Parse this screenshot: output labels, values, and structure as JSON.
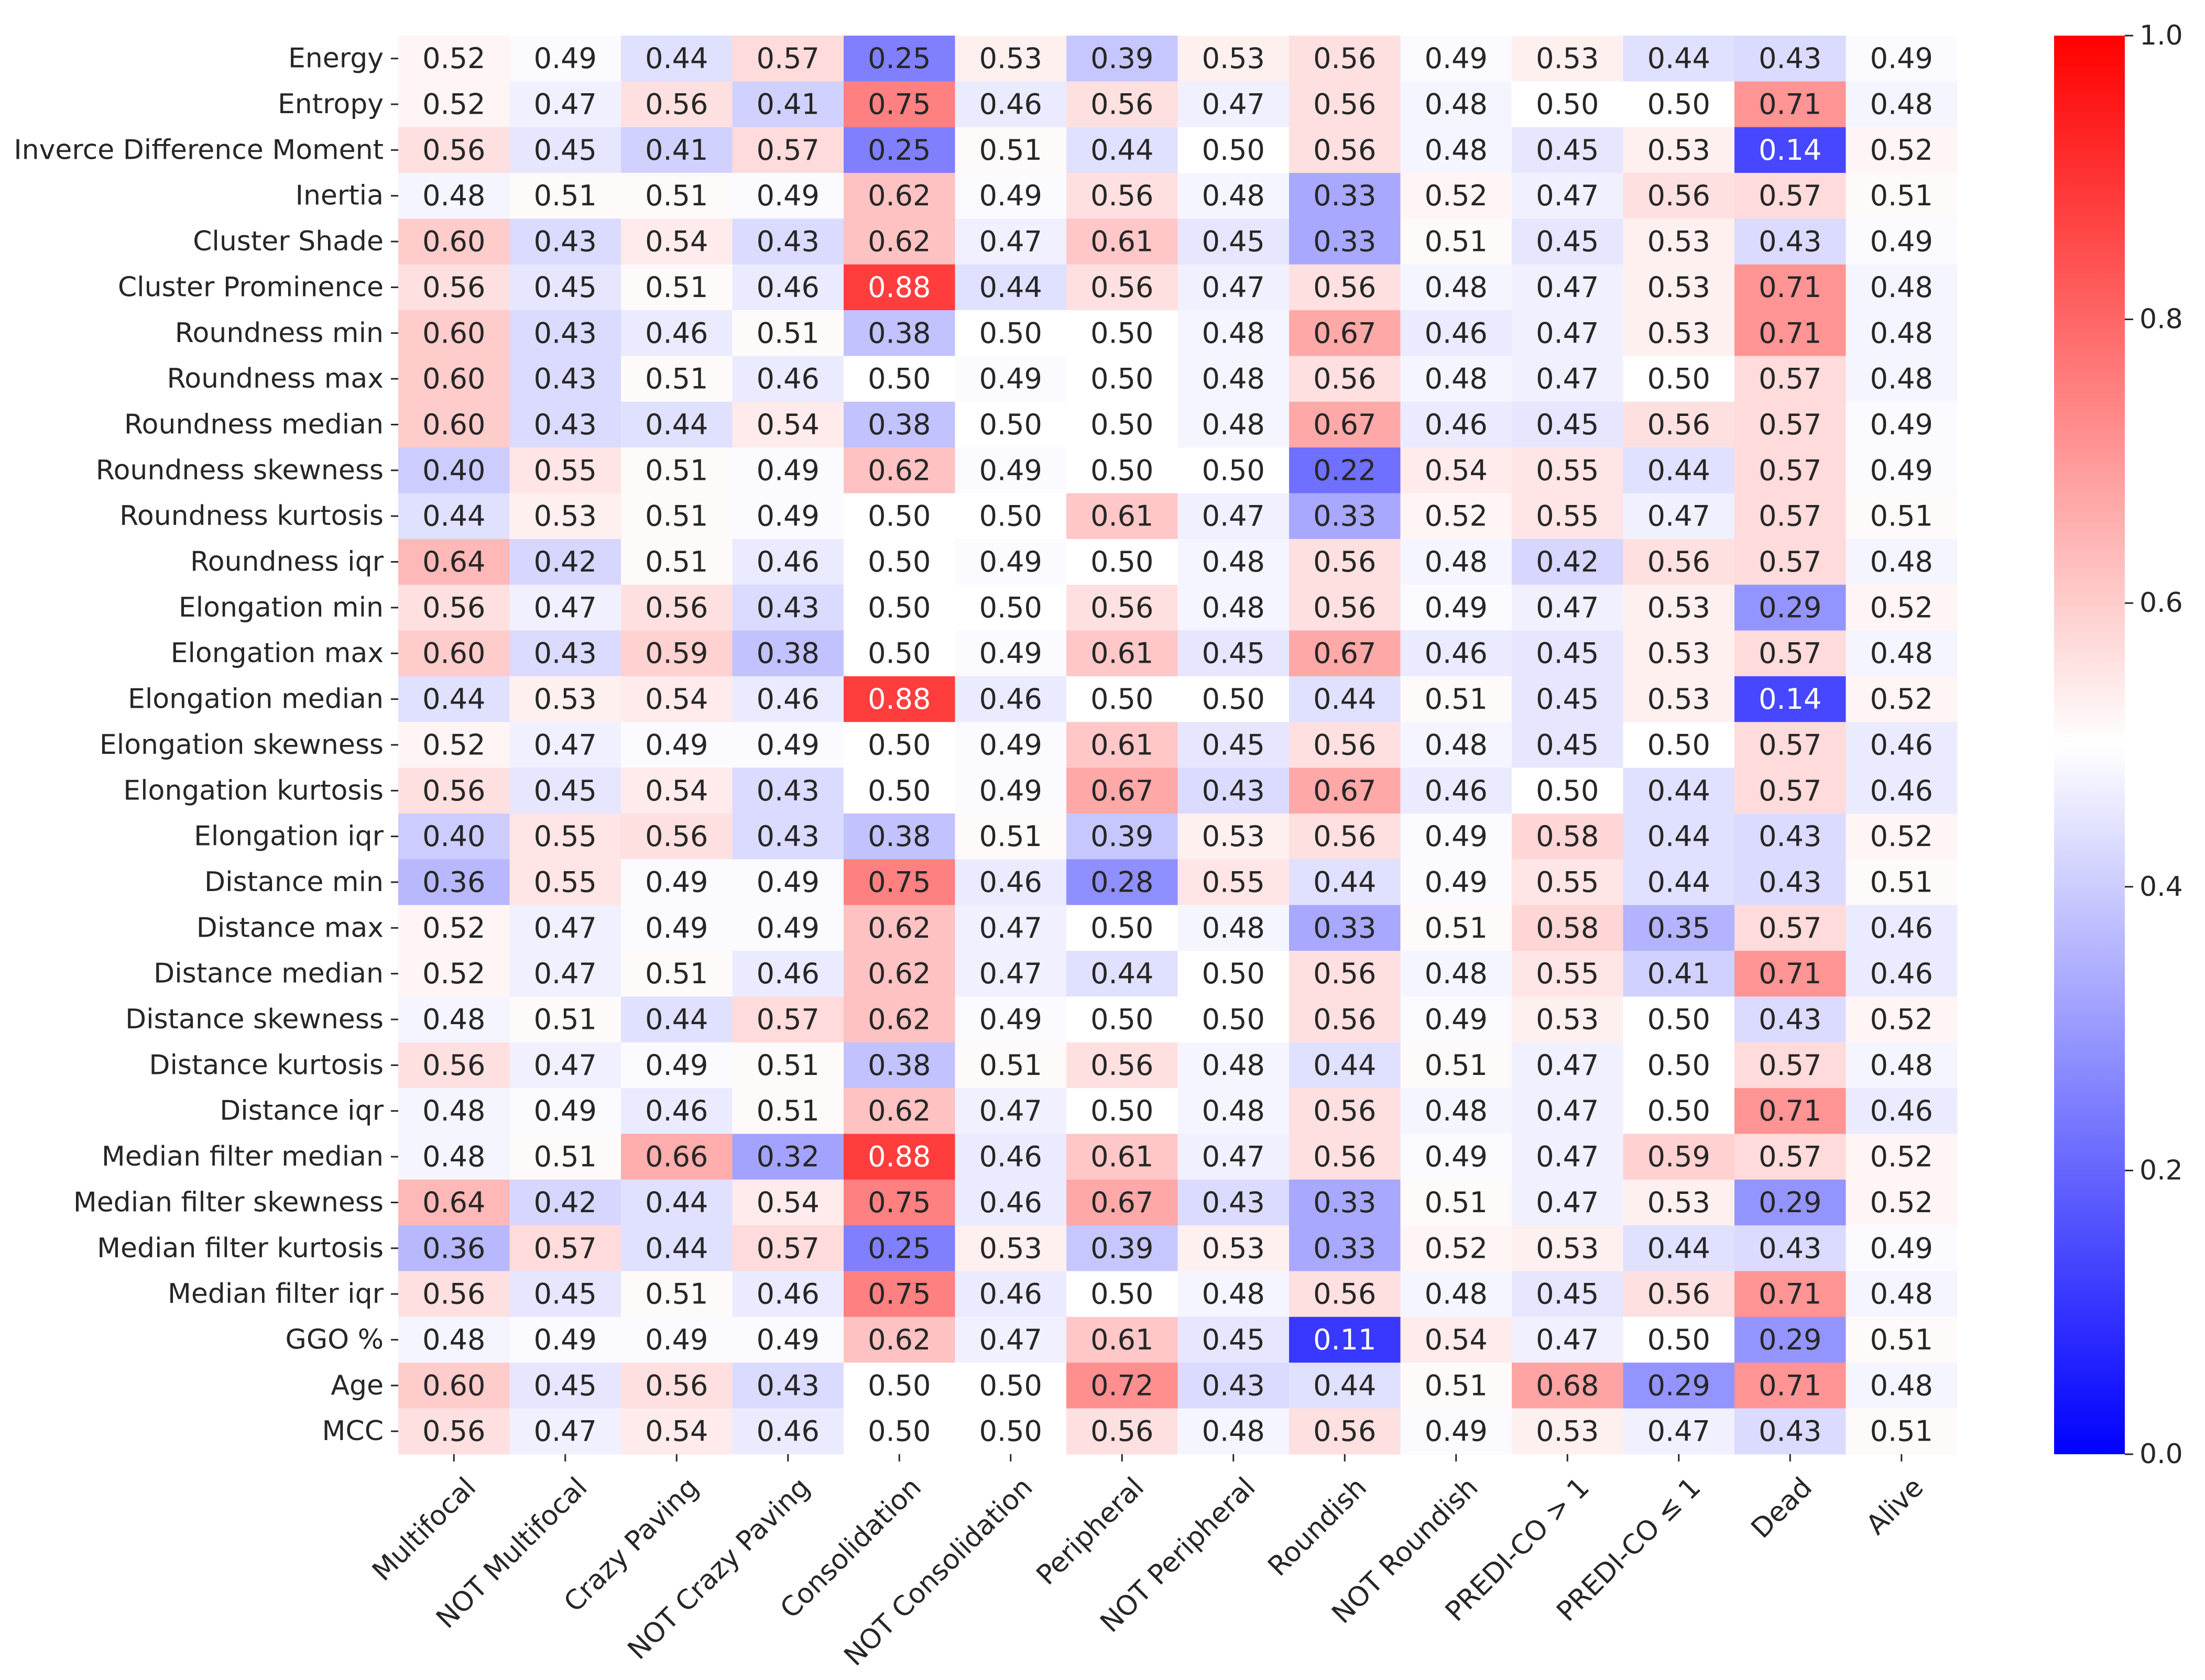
{
  "chart_data": {
    "type": "heatmap",
    "colormap": "bwr",
    "colors": {
      "low": "#0000ff",
      "mid": "#ffffff",
      "high": "#ff0000",
      "text_dark": "#262626",
      "text_light": "#ffffff"
    },
    "vmin": 0.0,
    "vmax": 1.0,
    "colorbar_ticks": [
      "0.0",
      "0.2",
      "0.4",
      "0.6",
      "0.8",
      "1.0"
    ],
    "rows": [
      "Energy",
      "Entropy",
      "Inverce Difference Moment",
      "Inertia",
      "Cluster Shade",
      "Cluster Prominence",
      "Roundness min",
      "Roundness max",
      "Roundness median",
      "Roundness skewness",
      "Roundness kurtosis",
      "Roundness iqr",
      "Elongation min",
      "Elongation max",
      "Elongation median",
      "Elongation skewness",
      "Elongation kurtosis",
      "Elongation iqr",
      "Distance min",
      "Distance max",
      "Distance median",
      "Distance skewness",
      "Distance kurtosis",
      "Distance iqr",
      "Median filter median",
      "Median filter skewness",
      "Median filter kurtosis",
      "Median filter iqr",
      "GGO %",
      "Age",
      "MCC"
    ],
    "columns": [
      "Multifocal",
      "NOT Multifocal",
      "Crazy Paving",
      "NOT Crazy Paving",
      "Consolidation",
      "NOT Consolidation",
      "Peripheral",
      "NOT Peripheral",
      "Roundish",
      "NOT Roundish",
      "PREDI-CO > 1",
      "PREDI-CO ≤ 1",
      "Dead",
      "Alive"
    ],
    "values": [
      [
        "0.52",
        "0.49",
        "0.44",
        "0.57",
        "0.25",
        "0.53",
        "0.39",
        "0.53",
        "0.56",
        "0.49",
        "0.53",
        "0.44",
        "0.43",
        "0.49"
      ],
      [
        "0.52",
        "0.47",
        "0.56",
        "0.41",
        "0.75",
        "0.46",
        "0.56",
        "0.47",
        "0.56",
        "0.48",
        "0.50",
        "0.50",
        "0.71",
        "0.48"
      ],
      [
        "0.56",
        "0.45",
        "0.41",
        "0.57",
        "0.25",
        "0.51",
        "0.44",
        "0.50",
        "0.56",
        "0.48",
        "0.45",
        "0.53",
        "0.14",
        "0.52"
      ],
      [
        "0.48",
        "0.51",
        "0.51",
        "0.49",
        "0.62",
        "0.49",
        "0.56",
        "0.48",
        "0.33",
        "0.52",
        "0.47",
        "0.56",
        "0.57",
        "0.51"
      ],
      [
        "0.60",
        "0.43",
        "0.54",
        "0.43",
        "0.62",
        "0.47",
        "0.61",
        "0.45",
        "0.33",
        "0.51",
        "0.45",
        "0.53",
        "0.43",
        "0.49"
      ],
      [
        "0.56",
        "0.45",
        "0.51",
        "0.46",
        "0.88",
        "0.44",
        "0.56",
        "0.47",
        "0.56",
        "0.48",
        "0.47",
        "0.53",
        "0.71",
        "0.48"
      ],
      [
        "0.60",
        "0.43",
        "0.46",
        "0.51",
        "0.38",
        "0.50",
        "0.50",
        "0.48",
        "0.67",
        "0.46",
        "0.47",
        "0.53",
        "0.71",
        "0.48"
      ],
      [
        "0.60",
        "0.43",
        "0.51",
        "0.46",
        "0.50",
        "0.49",
        "0.50",
        "0.48",
        "0.56",
        "0.48",
        "0.47",
        "0.50",
        "0.57",
        "0.48"
      ],
      [
        "0.60",
        "0.43",
        "0.44",
        "0.54",
        "0.38",
        "0.50",
        "0.50",
        "0.48",
        "0.67",
        "0.46",
        "0.45",
        "0.56",
        "0.57",
        "0.49"
      ],
      [
        "0.40",
        "0.55",
        "0.51",
        "0.49",
        "0.62",
        "0.49",
        "0.50",
        "0.50",
        "0.22",
        "0.54",
        "0.55",
        "0.44",
        "0.57",
        "0.49"
      ],
      [
        "0.44",
        "0.53",
        "0.51",
        "0.49",
        "0.50",
        "0.50",
        "0.61",
        "0.47",
        "0.33",
        "0.52",
        "0.55",
        "0.47",
        "0.57",
        "0.51"
      ],
      [
        "0.64",
        "0.42",
        "0.51",
        "0.46",
        "0.50",
        "0.49",
        "0.50",
        "0.48",
        "0.56",
        "0.48",
        "0.42",
        "0.56",
        "0.57",
        "0.48"
      ],
      [
        "0.56",
        "0.47",
        "0.56",
        "0.43",
        "0.50",
        "0.50",
        "0.56",
        "0.48",
        "0.56",
        "0.49",
        "0.47",
        "0.53",
        "0.29",
        "0.52"
      ],
      [
        "0.60",
        "0.43",
        "0.59",
        "0.38",
        "0.50",
        "0.49",
        "0.61",
        "0.45",
        "0.67",
        "0.46",
        "0.45",
        "0.53",
        "0.57",
        "0.48"
      ],
      [
        "0.44",
        "0.53",
        "0.54",
        "0.46",
        "0.88",
        "0.46",
        "0.50",
        "0.50",
        "0.44",
        "0.51",
        "0.45",
        "0.53",
        "0.14",
        "0.52"
      ],
      [
        "0.52",
        "0.47",
        "0.49",
        "0.49",
        "0.50",
        "0.49",
        "0.61",
        "0.45",
        "0.56",
        "0.48",
        "0.45",
        "0.50",
        "0.57",
        "0.46"
      ],
      [
        "0.56",
        "0.45",
        "0.54",
        "0.43",
        "0.50",
        "0.49",
        "0.67",
        "0.43",
        "0.67",
        "0.46",
        "0.50",
        "0.44",
        "0.57",
        "0.46"
      ],
      [
        "0.40",
        "0.55",
        "0.56",
        "0.43",
        "0.38",
        "0.51",
        "0.39",
        "0.53",
        "0.56",
        "0.49",
        "0.58",
        "0.44",
        "0.43",
        "0.52"
      ],
      [
        "0.36",
        "0.55",
        "0.49",
        "0.49",
        "0.75",
        "0.46",
        "0.28",
        "0.55",
        "0.44",
        "0.49",
        "0.55",
        "0.44",
        "0.43",
        "0.51"
      ],
      [
        "0.52",
        "0.47",
        "0.49",
        "0.49",
        "0.62",
        "0.47",
        "0.50",
        "0.48",
        "0.33",
        "0.51",
        "0.58",
        "0.35",
        "0.57",
        "0.46"
      ],
      [
        "0.52",
        "0.47",
        "0.51",
        "0.46",
        "0.62",
        "0.47",
        "0.44",
        "0.50",
        "0.56",
        "0.48",
        "0.55",
        "0.41",
        "0.71",
        "0.46"
      ],
      [
        "0.48",
        "0.51",
        "0.44",
        "0.57",
        "0.62",
        "0.49",
        "0.50",
        "0.50",
        "0.56",
        "0.49",
        "0.53",
        "0.50",
        "0.43",
        "0.52"
      ],
      [
        "0.56",
        "0.47",
        "0.49",
        "0.51",
        "0.38",
        "0.51",
        "0.56",
        "0.48",
        "0.44",
        "0.51",
        "0.47",
        "0.50",
        "0.57",
        "0.48"
      ],
      [
        "0.48",
        "0.49",
        "0.46",
        "0.51",
        "0.62",
        "0.47",
        "0.50",
        "0.48",
        "0.56",
        "0.48",
        "0.47",
        "0.50",
        "0.71",
        "0.46"
      ],
      [
        "0.48",
        "0.51",
        "0.66",
        "0.32",
        "0.88",
        "0.46",
        "0.61",
        "0.47",
        "0.56",
        "0.49",
        "0.47",
        "0.59",
        "0.57",
        "0.52"
      ],
      [
        "0.64",
        "0.42",
        "0.44",
        "0.54",
        "0.75",
        "0.46",
        "0.67",
        "0.43",
        "0.33",
        "0.51",
        "0.47",
        "0.53",
        "0.29",
        "0.52"
      ],
      [
        "0.36",
        "0.57",
        "0.44",
        "0.57",
        "0.25",
        "0.53",
        "0.39",
        "0.53",
        "0.33",
        "0.52",
        "0.53",
        "0.44",
        "0.43",
        "0.49"
      ],
      [
        "0.56",
        "0.45",
        "0.51",
        "0.46",
        "0.75",
        "0.46",
        "0.50",
        "0.48",
        "0.56",
        "0.48",
        "0.45",
        "0.56",
        "0.71",
        "0.48"
      ],
      [
        "0.48",
        "0.49",
        "0.49",
        "0.49",
        "0.62",
        "0.47",
        "0.61",
        "0.45",
        "0.11",
        "0.54",
        "0.47",
        "0.50",
        "0.29",
        "0.51"
      ],
      [
        "0.60",
        "0.45",
        "0.56",
        "0.43",
        "0.50",
        "0.50",
        "0.72",
        "0.43",
        "0.44",
        "0.51",
        "0.68",
        "0.29",
        "0.71",
        "0.48"
      ],
      [
        "0.56",
        "0.47",
        "0.54",
        "0.46",
        "0.50",
        "0.50",
        "0.56",
        "0.48",
        "0.56",
        "0.49",
        "0.53",
        "0.47",
        "0.43",
        "0.51"
      ]
    ]
  }
}
